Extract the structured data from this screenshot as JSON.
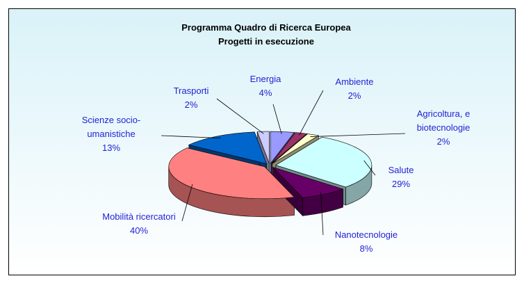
{
  "chart_data": {
    "type": "pie3d",
    "title": "Programma Quadro di Ricerca Europea",
    "subtitle": "Progetti in esecuzione",
    "categories": [
      "Energia",
      "Ambiente",
      "Agricoltura, e biotecnologie",
      "Salute",
      "Nanotecnologie",
      "Mobilità ricercatori",
      "Scienze socio-umanistiche",
      "Trasporti"
    ],
    "values": [
      4,
      2,
      2,
      29,
      8,
      40,
      13,
      2
    ],
    "value_labels": [
      "4%",
      "2%",
      "2%",
      "29%",
      "8%",
      "40%",
      "13%",
      "2%"
    ],
    "colors": [
      "#9999ff",
      "#993366",
      "#ffffcc",
      "#ccffff",
      "#660066",
      "#ff8080",
      "#0066cc",
      "#ccccff"
    ]
  }
}
